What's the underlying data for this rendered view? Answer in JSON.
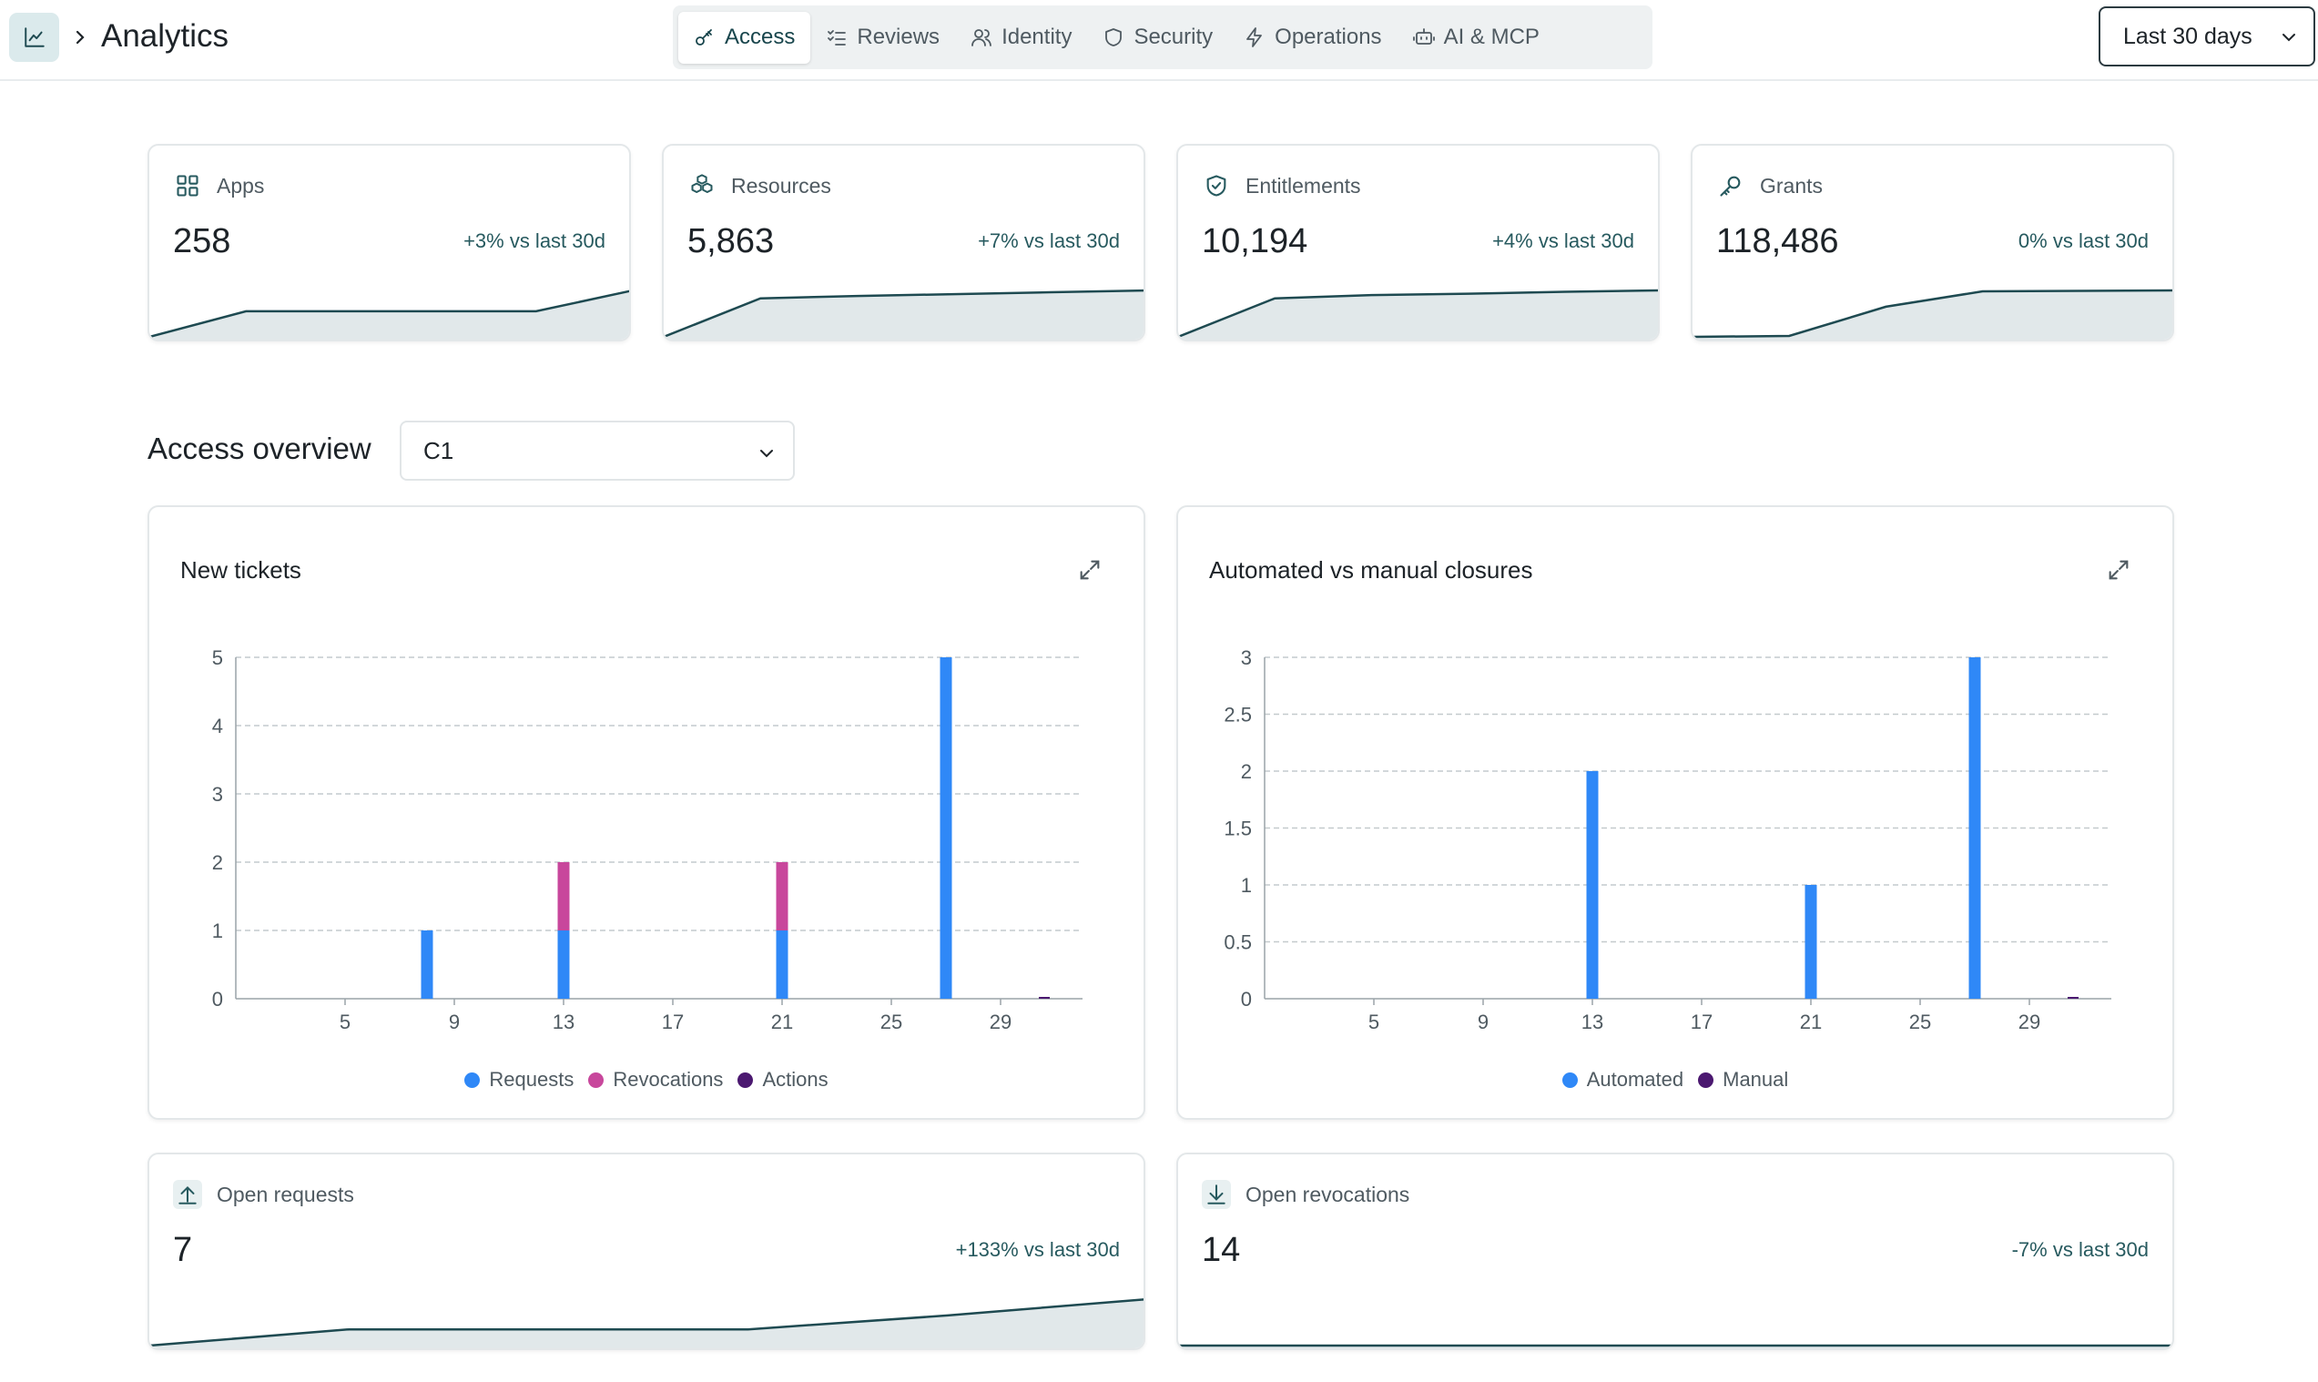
{
  "header": {
    "title": "Analytics",
    "range_label": "Last 30 days"
  },
  "tabs": [
    {
      "label": "Access",
      "icon": "key-icon",
      "active": true
    },
    {
      "label": "Reviews",
      "icon": "checklist-icon",
      "active": false
    },
    {
      "label": "Identity",
      "icon": "users-icon",
      "active": false
    },
    {
      "label": "Security",
      "icon": "shield-icon",
      "active": false
    },
    {
      "label": "Operations",
      "icon": "bolt-icon",
      "active": false
    },
    {
      "label": "AI & MCP",
      "icon": "bot-icon",
      "active": false
    }
  ],
  "stats": [
    {
      "label": "Apps",
      "icon": "grid-icon",
      "value": "258",
      "delta": "+3% vs last 30d",
      "trend": [
        0,
        0.55,
        0.55,
        0.55,
        0.55,
        1
      ]
    },
    {
      "label": "Resources",
      "icon": "cubes-icon",
      "value": "5,863",
      "delta": "+7% vs last 30d",
      "trend": [
        0,
        0.83,
        0.88,
        0.92,
        0.96,
        1
      ]
    },
    {
      "label": "Entitlements",
      "icon": "shield-check-icon",
      "value": "10,194",
      "delta": "+4% vs last 30d",
      "trend": [
        0,
        0.83,
        0.9,
        0.93,
        0.97,
        1
      ]
    },
    {
      "label": "Grants",
      "icon": "key-icon",
      "value": "118,486",
      "delta": "0% vs last 30d",
      "trend": [
        0,
        0.02,
        0.65,
        0.98,
        0.99,
        1
      ]
    }
  ],
  "overview": {
    "title": "Access overview",
    "selected": "C1"
  },
  "charts": {
    "new_tickets": {
      "title": "New tickets"
    },
    "closures": {
      "title": "Automated vs manual closures"
    }
  },
  "bottom_stats": [
    {
      "label": "Open requests",
      "icon": "upload-icon",
      "value": "7",
      "delta": "+133% vs last 30d",
      "trend": [
        0,
        0.35,
        0.35,
        0.35,
        0.65,
        1
      ]
    },
    {
      "label": "Open revocations",
      "icon": "download-icon",
      "value": "14",
      "delta": "-7% vs last 30d",
      "trend": [
        0,
        0,
        0,
        0,
        0,
        0
      ]
    }
  ],
  "colors": {
    "accent": "#18454c",
    "spark_line": "#1e4a51",
    "spark_fill": "#e1e8ea",
    "requests": "#2f88f7",
    "revocations": "#c8479c",
    "actions": "#4b1870",
    "automated": "#2f88f7",
    "manual": "#4b1870"
  },
  "chart_data": [
    {
      "type": "bar",
      "title": "New tickets",
      "stacked": true,
      "x_ticks": [
        5,
        9,
        13,
        17,
        21,
        25,
        29
      ],
      "ylim": [
        0,
        5
      ],
      "y_ticks": [
        0,
        1,
        2,
        3,
        4,
        5
      ],
      "grid": true,
      "legend_position": "bottom",
      "series": [
        {
          "name": "Requests",
          "points": [
            [
              8,
              1
            ],
            [
              13,
              1
            ],
            [
              21,
              1
            ],
            [
              27,
              5
            ]
          ]
        },
        {
          "name": "Revocations",
          "points": [
            [
              13,
              1
            ],
            [
              21,
              1
            ]
          ]
        },
        {
          "name": "Actions",
          "points": []
        }
      ]
    },
    {
      "type": "bar",
      "title": "Automated vs manual closures",
      "stacked": true,
      "x_ticks": [
        5,
        9,
        13,
        17,
        21,
        25,
        29
      ],
      "ylim": [
        0,
        3
      ],
      "y_ticks": [
        "0",
        "0.5",
        "1",
        "1.5",
        "2",
        "2.5",
        "3"
      ],
      "grid": true,
      "legend_position": "bottom",
      "series": [
        {
          "name": "Automated",
          "points": [
            [
              13,
              2
            ],
            [
              21,
              1
            ],
            [
              27,
              3
            ]
          ]
        },
        {
          "name": "Manual",
          "points": []
        }
      ]
    }
  ]
}
